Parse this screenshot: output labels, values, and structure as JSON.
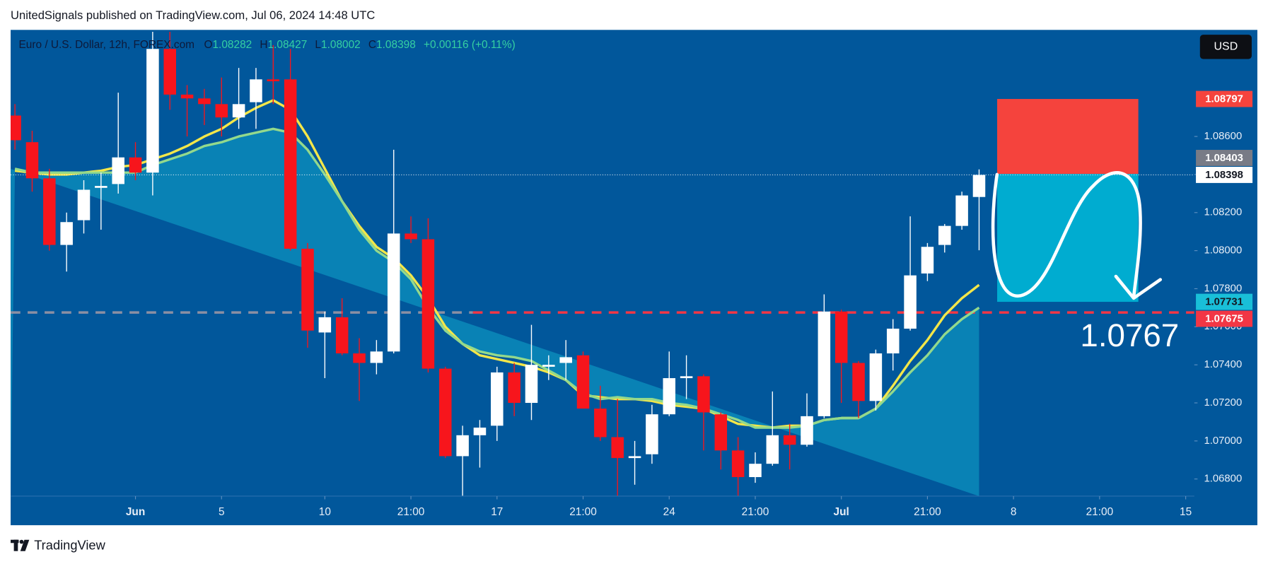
{
  "header": "UnitedSignals published on TradingView.com, Jul 06, 2024 14:48 UTC",
  "footer": {
    "logo": "TradingView"
  },
  "chart_data": {
    "type": "candlestick",
    "title": "Euro / U.S. Dollar, 12h, FOREX.com",
    "legend_labels": [
      "O",
      "H",
      "L",
      "C"
    ],
    "change": "+0.00116 (+0.11%)",
    "currency": "USD",
    "up_color": "#ffffff",
    "down_color": "#f7151c",
    "open": [
      1.0871,
      1.0857,
      1.0838,
      1.0803,
      1.0816,
      1.0833,
      1.0835,
      1.0849,
      1.0841,
      1.0906,
      1.0882,
      1.088,
      1.0877,
      1.087,
      1.0878,
      1.089,
      1.089,
      1.0801,
      1.0757,
      1.0765,
      1.0746,
      1.0741,
      1.0747,
      1.0809,
      1.0806,
      1.0738,
      1.0692,
      1.0703,
      1.0708,
      1.0736,
      1.072,
      1.0739,
      1.0741,
      1.0745,
      1.0717,
      1.0702,
      1.0691,
      1.0693,
      1.0714,
      1.0733,
      1.0734,
      1.0714,
      1.0695,
      1.0681,
      1.0688,
      1.0703,
      1.0698,
      1.0713,
      1.0768,
      1.0741,
      1.0721,
      1.0746,
      1.0759,
      1.0788,
      1.0803,
      1.0813,
      1.08282
    ],
    "high": [
      1.0877,
      1.0863,
      1.0843,
      1.082,
      1.0837,
      1.0841,
      1.0883,
      1.0857,
      1.0915,
      1.0915,
      1.0887,
      1.0885,
      1.0891,
      1.0896,
      1.0896,
      1.0908,
      1.0906,
      1.0804,
      1.0768,
      1.0775,
      1.0754,
      1.0753,
      1.0853,
      1.0818,
      1.0817,
      1.0739,
      1.0708,
      1.0711,
      1.0739,
      1.0741,
      1.0761,
      1.0745,
      1.0753,
      1.0747,
      1.0729,
      1.0722,
      1.07,
      1.0719,
      1.0747,
      1.0745,
      1.0735,
      1.0715,
      1.0702,
      1.0694,
      1.0726,
      1.0709,
      1.0725,
      1.0777,
      1.0769,
      1.0742,
      1.0748,
      1.0764,
      1.0818,
      1.0804,
      1.0814,
      1.0831,
      1.08427
    ],
    "low": [
      1.0853,
      1.0831,
      1.08,
      1.0789,
      1.0809,
      1.0811,
      1.083,
      1.0837,
      1.0829,
      1.0874,
      1.086,
      1.0866,
      1.086,
      1.0864,
      1.0864,
      1.0877,
      1.08,
      1.0749,
      1.0733,
      1.0745,
      1.0721,
      1.0735,
      1.0746,
      1.0804,
      1.0736,
      1.0691,
      1.0671,
      1.0686,
      1.07,
      1.0713,
      1.0711,
      1.0732,
      1.0732,
      1.0717,
      1.07,
      1.0671,
      1.0677,
      1.0688,
      1.0713,
      1.0722,
      1.0695,
      1.0685,
      1.0671,
      1.0678,
      1.0687,
      1.0685,
      1.0697,
      1.0712,
      1.072,
      1.0712,
      1.0716,
      1.0737,
      1.0758,
      1.0784,
      1.0799,
      1.0811,
      1.08002
    ],
    "close": [
      1.0858,
      1.0838,
      1.0803,
      1.0815,
      1.0832,
      1.0834,
      1.0849,
      1.0841,
      1.0906,
      1.0882,
      1.088,
      1.0877,
      1.087,
      1.0877,
      1.089,
      1.0889,
      1.0801,
      1.0758,
      1.0765,
      1.0746,
      1.0741,
      1.0747,
      1.0809,
      1.0806,
      1.0738,
      1.0692,
      1.0703,
      1.0707,
      1.0736,
      1.072,
      1.074,
      1.074,
      1.0744,
      1.0717,
      1.0702,
      1.0691,
      1.0692,
      1.0714,
      1.0733,
      1.0734,
      1.0715,
      1.0695,
      1.0681,
      1.0688,
      1.0703,
      1.0698,
      1.0713,
      1.0768,
      1.0741,
      1.0721,
      1.0746,
      1.0759,
      1.0787,
      1.0802,
      1.0813,
      1.0829,
      1.08398
    ],
    "overlays": [
      {
        "color": "#f3e649",
        "values": [
          1.0842,
          1.0841,
          1.084,
          1.084,
          1.0841,
          1.0842,
          1.0844,
          1.0845,
          1.0848,
          1.0851,
          1.0855,
          1.086,
          1.0864,
          1.087,
          1.0875,
          1.0879,
          1.0874,
          1.086,
          1.0843,
          1.0826,
          1.0813,
          1.0802,
          1.0796,
          1.0787,
          1.0775,
          1.076,
          1.0751,
          1.0745,
          1.0743,
          1.0741,
          1.0739,
          1.0736,
          1.0732,
          1.0724,
          1.0723,
          1.0722,
          1.0722,
          1.0721,
          1.0719,
          1.0718,
          1.0717,
          1.0713,
          1.0709,
          1.0708,
          1.0707,
          1.0708,
          1.0708,
          1.0711,
          1.0712,
          1.0712,
          1.0717,
          1.0729,
          1.0742,
          1.0753,
          1.0766,
          1.0775,
          1.0782
        ]
      },
      {
        "color": "#93d98c",
        "fill": "#0b89ba",
        "values": [
          1.0843,
          1.0841,
          1.0841,
          1.0841,
          1.0841,
          1.0841,
          1.0841,
          1.0841,
          1.0845,
          1.0848,
          1.0851,
          1.0855,
          1.0857,
          1.086,
          1.0862,
          1.0864,
          1.0862,
          1.0853,
          1.084,
          1.0826,
          1.0811,
          1.08,
          1.0794,
          1.0785,
          1.077,
          1.0758,
          1.0751,
          1.0747,
          1.0745,
          1.0744,
          1.0742,
          1.0737,
          1.0732,
          1.0725,
          1.0722,
          1.0723,
          1.0722,
          1.0722,
          1.072,
          1.0719,
          1.0717,
          1.0714,
          1.0711,
          1.0707,
          1.0707,
          1.0707,
          1.0708,
          1.0711,
          1.0712,
          1.0712,
          1.0717,
          1.0726,
          1.0736,
          1.0745,
          1.0756,
          1.0764,
          1.077
        ]
      }
    ],
    "xlim": [
      -0.25,
      68.5
    ],
    "xticks": [
      {
        "value": 7,
        "label": "Jun"
      },
      {
        "value": 12,
        "label": "5"
      },
      {
        "value": 18,
        "label": "10"
      },
      {
        "value": 23,
        "label": "21:00"
      },
      {
        "value": 28,
        "label": "17"
      },
      {
        "value": 33,
        "label": "21:00"
      },
      {
        "value": 38,
        "label": "24"
      },
      {
        "value": 43,
        "label": "21:00"
      },
      {
        "value": 48,
        "label": "Jul"
      },
      {
        "value": 53,
        "label": "21:00"
      },
      {
        "value": 58,
        "label": "8"
      },
      {
        "value": 63,
        "label": "21:00"
      },
      {
        "value": 68,
        "label": "15"
      }
    ],
    "ylim": [
      1.0671,
      1.0916
    ],
    "yticks": [
      {
        "value": 1.068,
        "label": "1.06800"
      },
      {
        "value": 1.07,
        "label": "1.07000"
      },
      {
        "value": 1.072,
        "label": "1.07200"
      },
      {
        "value": 1.074,
        "label": "1.07400"
      },
      {
        "value": 1.076,
        "label": "1.07600"
      },
      {
        "value": 1.078,
        "label": "1.07800"
      },
      {
        "value": 1.08,
        "label": "1.08000"
      },
      {
        "value": 1.082,
        "label": "1.08200"
      },
      {
        "value": 1.084,
        "label": "1.08400"
      },
      {
        "value": 1.086,
        "label": "1.08600"
      }
    ],
    "grid": false,
    "hlines": [
      {
        "value": 1.07675,
        "color": "#f23645"
      }
    ],
    "position": {
      "stop": 1.08797,
      "entry": 1.08403,
      "target": 1.07731,
      "stop_color": "#f5433d",
      "entry_color": "#787b86",
      "target_color": "#00acd0",
      "label_target_color": "#19bfd8"
    },
    "annotations": [
      "1.0767"
    ]
  }
}
